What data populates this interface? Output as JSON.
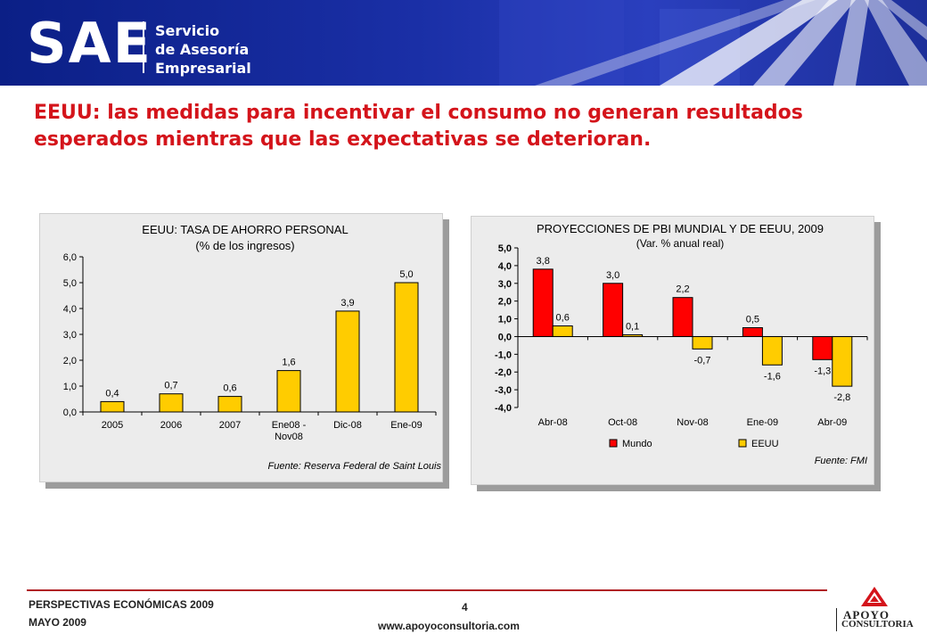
{
  "header": {
    "logo_text": "SAE",
    "logo_subtitle_lines": [
      "Servicio",
      "de Asesoría",
      "Empresarial"
    ]
  },
  "headline": {
    "line1": "EEUU: las medidas para incentivar el consumo no generan resultados",
    "line2": "esperados mientras que las expectativas se deterioran."
  },
  "chart_data": [
    {
      "type": "bar",
      "title": "EEUU: TASA DE AHORRO PERSONAL",
      "subtitle": "(% de los ingresos)",
      "categories": [
        [
          "2005"
        ],
        [
          "2006"
        ],
        [
          "2007"
        ],
        [
          "Ene08 -",
          "Nov08"
        ],
        [
          "Dic-08"
        ],
        [
          "Ene-09"
        ]
      ],
      "values": [
        0.4,
        0.7,
        0.6,
        1.6,
        3.9,
        5.0
      ],
      "value_labels": [
        "0,4",
        "0,7",
        "0,6",
        "1,6",
        "3,9",
        "5,0"
      ],
      "ylim": [
        0,
        6
      ],
      "yticks": [
        "0,0",
        "1,0",
        "2,0",
        "3,0",
        "4,0",
        "5,0",
        "6,0"
      ],
      "yticks_values": [
        0,
        1,
        2,
        3,
        4,
        5,
        6
      ],
      "bar_color": "#ffcc00",
      "grid": false,
      "source": "Fuente: Reserva Federal de Saint Louis"
    },
    {
      "type": "bar",
      "title": "PROYECCIONES DE PBI MUNDIAL Y DE EEUU, 2009",
      "subtitle": "(Var. % anual real)",
      "categories": [
        "Abr-08",
        "Oct-08",
        "Nov-08",
        "Ene-09",
        "Abr-09"
      ],
      "series": [
        {
          "name": "Mundo",
          "color": "#ff0000",
          "values": [
            3.8,
            3.0,
            2.2,
            0.5,
            -1.3
          ],
          "labels": [
            "3,8",
            "3,0",
            "2,2",
            "0,5",
            "-1,3"
          ]
        },
        {
          "name": "EEUU",
          "color": "#ffcc00",
          "values": [
            0.6,
            0.1,
            -0.7,
            -1.6,
            -2.8
          ],
          "labels": [
            "0,6",
            "0,1",
            "-0,7",
            "-1,6",
            "-2,8"
          ]
        }
      ],
      "ylim": [
        -4,
        5
      ],
      "yticks": [
        "-4,0",
        "-3,0",
        "-2,0",
        "-1,0",
        "0,0",
        "1,0",
        "2,0",
        "3,0",
        "4,0",
        "5,0"
      ],
      "yticks_values": [
        -4,
        -3,
        -2,
        -1,
        0,
        1,
        2,
        3,
        4,
        5
      ],
      "legend_position": "bottom",
      "grid": false,
      "source": "Fuente: FMI"
    }
  ],
  "footer": {
    "left_line1": "PERSPECTIVAS ECONÓMICAS 2009",
    "left_line2": "MAYO 2009",
    "page_number": "4",
    "url": "www.apoyoconsultoria.com",
    "logo_line1": "APOYO",
    "logo_line2": "CONSULTORIA"
  }
}
